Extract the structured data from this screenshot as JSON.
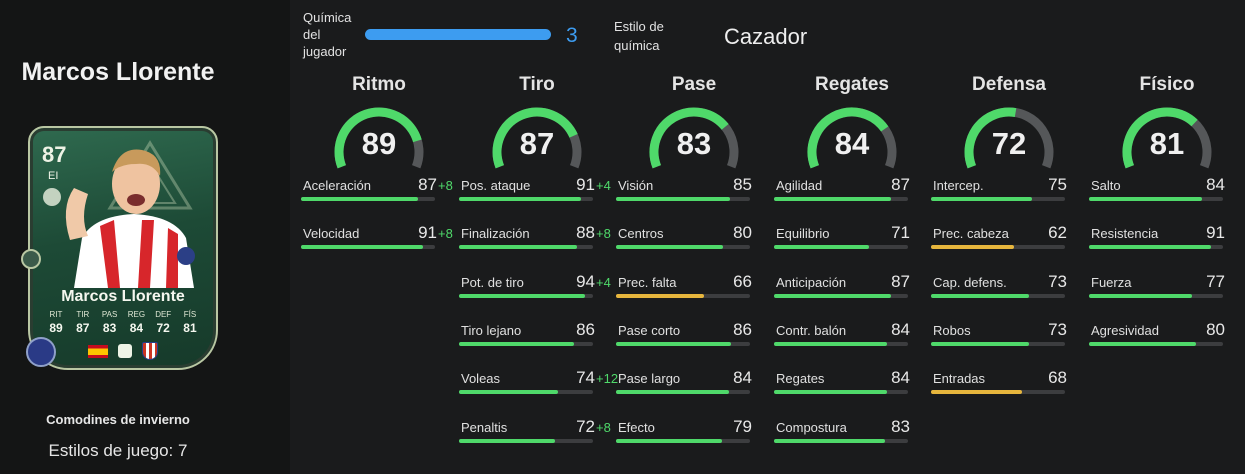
{
  "player": {
    "name": "Marcos Llorente",
    "promo": "Comodines de invierno",
    "playstyles": "Estilos de juego: 7"
  },
  "card": {
    "rating": "87",
    "position": "EI",
    "name": "Marcos Llorente",
    "stats": [
      {
        "label": "RIT",
        "value": "89"
      },
      {
        "label": "TIR",
        "value": "87"
      },
      {
        "label": "PAS",
        "value": "83"
      },
      {
        "label": "REG",
        "value": "84"
      },
      {
        "label": "DEF",
        "value": "72"
      },
      {
        "label": "FÍS",
        "value": "81"
      }
    ],
    "nation_icon": "spain-flag-icon",
    "league_icon": "laliga-icon",
    "club_icon": "atletico-madrid-crest-icon",
    "playstyle_icon": "playstyle-plus-icon"
  },
  "chemistry": {
    "label": "Química del jugador",
    "value": "3",
    "fraction": 1.0,
    "style_label": "Estilo de química",
    "style_value": "Cazador",
    "color": "#3d9cf0"
  },
  "colors": {
    "high": "#4fd96a",
    "mid": "#e7b63d",
    "track": "#3c3d3f",
    "gauge_track": "#555759"
  },
  "categories": [
    {
      "title": "Ritmo",
      "value": "89",
      "attributes": [
        {
          "name": "Aceleración",
          "value": "87",
          "boost": "+8"
        },
        {
          "name": "Velocidad",
          "value": "91",
          "boost": "+8"
        }
      ]
    },
    {
      "title": "Tiro",
      "value": "87",
      "attributes": [
        {
          "name": "Pos. ataque",
          "value": "91",
          "boost": "+4"
        },
        {
          "name": "Finalización",
          "value": "88",
          "boost": "+8"
        },
        {
          "name": "Pot. de tiro",
          "value": "94",
          "boost": "+4"
        },
        {
          "name": "Tiro lejano",
          "value": "86",
          "boost": ""
        },
        {
          "name": "Voleas",
          "value": "74",
          "boost": "+12"
        },
        {
          "name": "Penaltis",
          "value": "72",
          "boost": "+8"
        }
      ]
    },
    {
      "title": "Pase",
      "value": "83",
      "attributes": [
        {
          "name": "Visión",
          "value": "85",
          "boost": ""
        },
        {
          "name": "Centros",
          "value": "80",
          "boost": ""
        },
        {
          "name": "Prec. falta",
          "value": "66",
          "boost": ""
        },
        {
          "name": "Pase corto",
          "value": "86",
          "boost": ""
        },
        {
          "name": "Pase largo",
          "value": "84",
          "boost": ""
        },
        {
          "name": "Efecto",
          "value": "79",
          "boost": ""
        }
      ]
    },
    {
      "title": "Regates",
      "value": "84",
      "attributes": [
        {
          "name": "Agilidad",
          "value": "87",
          "boost": ""
        },
        {
          "name": "Equilibrio",
          "value": "71",
          "boost": ""
        },
        {
          "name": "Anticipación",
          "value": "87",
          "boost": ""
        },
        {
          "name": "Contr. balón",
          "value": "84",
          "boost": ""
        },
        {
          "name": "Regates",
          "value": "84",
          "boost": ""
        },
        {
          "name": "Compostura",
          "value": "83",
          "boost": ""
        }
      ]
    },
    {
      "title": "Defensa",
      "value": "72",
      "attributes": [
        {
          "name": "Intercep.",
          "value": "75",
          "boost": ""
        },
        {
          "name": "Prec. cabeza",
          "value": "62",
          "boost": ""
        },
        {
          "name": "Cap. defens.",
          "value": "73",
          "boost": ""
        },
        {
          "name": "Robos",
          "value": "73",
          "boost": ""
        },
        {
          "name": "Entradas",
          "value": "68",
          "boost": ""
        }
      ]
    },
    {
      "title": "Físico",
      "value": "81",
      "attributes": [
        {
          "name": "Salto",
          "value": "84",
          "boost": ""
        },
        {
          "name": "Resistencia",
          "value": "91",
          "boost": ""
        },
        {
          "name": "Fuerza",
          "value": "77",
          "boost": ""
        },
        {
          "name": "Agresividad",
          "value": "80",
          "boost": ""
        }
      ]
    }
  ]
}
